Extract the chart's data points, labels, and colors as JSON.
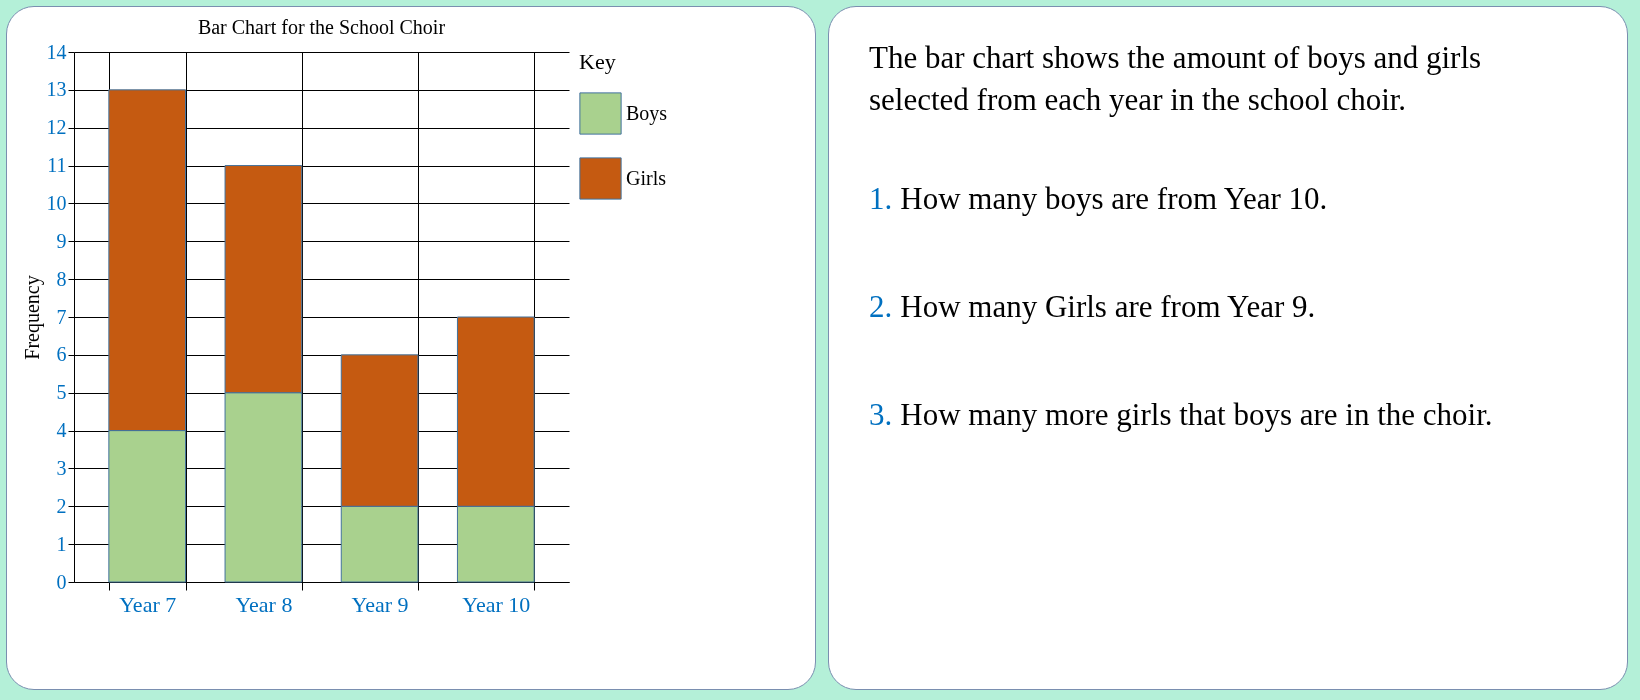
{
  "chart_data": [
    {
      "type": "bar",
      "title": "Bar Chart for the School Choir",
      "ylabel": "Frequency",
      "categories": [
        "Year 7",
        "Year 8",
        "Year 9",
        "Year 10"
      ],
      "stacked": true,
      "series": [
        {
          "name": "Boys",
          "color": "#a9d18e",
          "values": [
            4,
            5,
            2,
            2
          ]
        },
        {
          "name": "Girls",
          "color": "#c55a11",
          "values": [
            9,
            6,
            4,
            5
          ]
        }
      ],
      "ylim": [
        0,
        14
      ],
      "yticks": [
        0,
        1,
        2,
        3,
        4,
        5,
        6,
        7,
        8,
        9,
        10,
        11,
        12,
        13,
        14
      ],
      "grid": true,
      "legend": "top right",
      "legend_title": "Key"
    },
    {
      "type": "other",
      "title": "The bar chart shows the amount of boys and girls selected from each year in the school choir.",
      "annotations": [
        "1. How many boys are from Year 10.",
        "2. How many Girls are from Year 9.",
        "3. How many more girls that boys are in the choir."
      ]
    }
  ]
}
